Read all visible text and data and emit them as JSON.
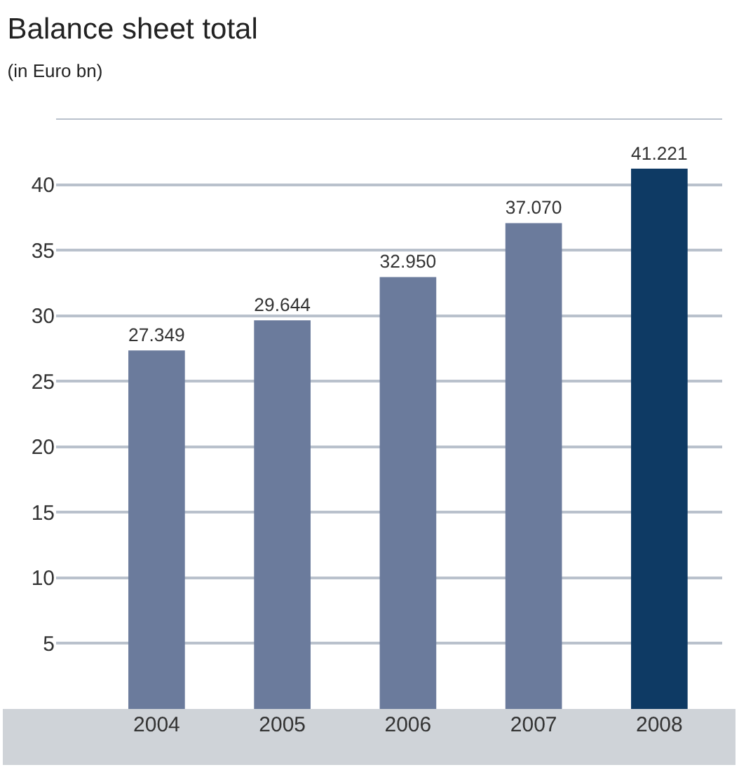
{
  "chart_data": {
    "type": "bar",
    "title": "Balance sheet total",
    "subtitle": "(in Euro bn)",
    "categories": [
      "2004",
      "2005",
      "2006",
      "2007",
      "2008"
    ],
    "values": [
      27.349,
      29.644,
      32.95,
      37.07,
      41.221
    ],
    "colors": [
      "#6b7b9c",
      "#6b7b9c",
      "#6b7b9c",
      "#6b7b9c",
      "#0e3a64"
    ],
    "value_labels": [
      "27.349",
      "29.644",
      "32.950",
      "37.070",
      "41.221"
    ],
    "ylim": [
      0,
      45
    ],
    "yticks": [
      5,
      10,
      15,
      20,
      25,
      30,
      35,
      40
    ],
    "grid": "y"
  }
}
